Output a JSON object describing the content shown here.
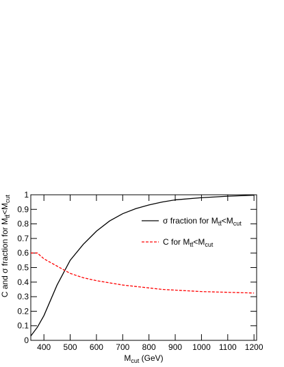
{
  "chart_data": {
    "type": "line",
    "xlabel": "M_{cut} (GeV)",
    "ylabel": "C and σ fraction for M_{tt̄}<M_{cut}",
    "x": [
      350,
      375,
      400,
      450,
      500,
      550,
      600,
      650,
      700,
      750,
      800,
      850,
      900,
      1000,
      1100,
      1200
    ],
    "series": [
      {
        "name": "σ fraction for M_{tt̄}<M_{cut}",
        "color": "#000000",
        "dash": false,
        "values": [
          0.03,
          0.09,
          0.17,
          0.38,
          0.55,
          0.66,
          0.75,
          0.82,
          0.87,
          0.905,
          0.93,
          0.95,
          0.965,
          0.98,
          0.99,
          0.997
        ]
      },
      {
        "name": "C for M_{tt̄}<M_{cut}",
        "color": "#ff0000",
        "dash": true,
        "values": [
          0.6,
          0.6,
          0.56,
          0.51,
          0.46,
          0.43,
          0.41,
          0.395,
          0.38,
          0.37,
          0.36,
          0.35,
          0.345,
          0.335,
          0.33,
          0.325
        ]
      }
    ],
    "xlim": [
      350,
      1210
    ],
    "ylim": [
      0,
      1
    ],
    "xticks": [
      400,
      500,
      600,
      700,
      800,
      900,
      1000,
      1100,
      1200
    ],
    "yticks": [
      0,
      0.1,
      0.2,
      0.3,
      0.4,
      0.5,
      0.6,
      0.7,
      0.8,
      0.9,
      1
    ]
  }
}
